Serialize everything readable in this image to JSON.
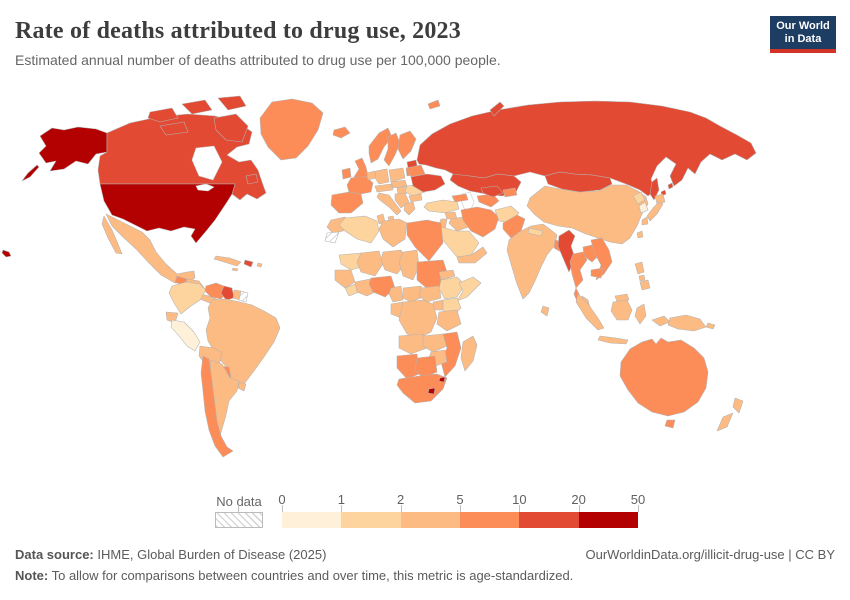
{
  "header": {
    "title": "Rate of deaths attributed to drug use, 2023",
    "subtitle": "Estimated annual number of deaths attributed to drug use per 100,000 people."
  },
  "logo": {
    "line1": "Our World",
    "line2": "in Data",
    "bg_color": "#1d3d63",
    "accent_color": "#d13327"
  },
  "legend": {
    "no_data_label": "No data",
    "tick_labels": [
      "0",
      "1",
      "2",
      "5",
      "10",
      "20",
      "50"
    ]
  },
  "footer": {
    "source_label": "Data source:",
    "source_value": " IHME, Global Burden of Disease (2025)",
    "attribution": "OurWorldinData.org/illicit-drug-use | CC BY",
    "note_label": "Note:",
    "note_value": " To allow for comparisons between countries and over time, this metric is age-standardized."
  },
  "chart_data": {
    "type": "choropleth_map",
    "title": "Rate of deaths attributed to drug use, 2023",
    "unit": "deaths per 100,000 people (age-standardized)",
    "year": "2023",
    "legend_position": "bottom",
    "border_color": "#b3b3b3",
    "water_color": "#ffffff",
    "bins": [
      {
        "label": "0-1",
        "color": "#fef0d9"
      },
      {
        "label": "1-2",
        "color": "#fdd49e"
      },
      {
        "label": "2-5",
        "color": "#fdbb84"
      },
      {
        "label": "5-10",
        "color": "#fc8d59"
      },
      {
        "label": "10-20",
        "color": "#e34a33"
      },
      {
        "label": "20-50",
        "color": "#b30000"
      },
      {
        "label": "No data",
        "color": "hatch"
      }
    ],
    "countries": {
      "united-states": "20-50",
      "canada": "10-20",
      "greenland": "5-10",
      "mexico": "2-5",
      "guatemala": "5-10",
      "honduras-nicaragua": "2-5",
      "costa-rica-panama": "2-5",
      "cuba": "2-5",
      "jamaica": "2-5",
      "haiti-dominican-republic": "10-20",
      "puerto-rico": "2-5",
      "colombia": "1-2",
      "venezuela": "5-10",
      "guyana": "10-20",
      "suriname": "2-5",
      "french-guiana": "No data",
      "ecuador": "2-5",
      "peru": "0-1",
      "brazil": "2-5",
      "bolivia": "2-5",
      "paraguay": "5-10",
      "chile": "5-10",
      "argentina": "2-5",
      "uruguay": "2-5",
      "iceland": "5-10",
      "ireland": "5-10",
      "united-kingdom": "5-10",
      "norway": "5-10",
      "sweden": "5-10",
      "finland": "5-10",
      "denmark": "5-10",
      "estonia": "10-20",
      "latvia-lithuania": "5-10",
      "spain-portugal": "5-10",
      "france": "5-10",
      "belgium-netherlands": "2-5",
      "germany": "2-5",
      "switzerland-austria": "2-5",
      "italy": "2-5",
      "poland": "2-5",
      "czechia-slovakia": "2-5",
      "hungary": "2-5",
      "balkans": "2-5",
      "greece": "2-5",
      "romania": "1-2",
      "bulgaria": "2-5",
      "belarus": "5-10",
      "ukraine": "10-20",
      "russia": "10-20",
      "kazakhstan": "10-20",
      "caucasus": "5-10",
      "turkey": "1-2",
      "syria": "2-5",
      "jordan-israel": "2-5",
      "iraq": "2-5",
      "saudi-arabia": "1-2",
      "yemen-oman": "2-5",
      "iran": "5-10",
      "turkmenistan": "5-10",
      "uzbekistan": "10-20",
      "kyrgyzstan-tajikistan": "5-10",
      "afghanistan": "1-2",
      "pakistan": "5-10",
      "india": "2-5",
      "nepal": "1-2",
      "bangladesh": "5-10",
      "sri-lanka": "2-5",
      "china": "2-5",
      "mongolia": "10-20",
      "north-korea": "1-2",
      "south-korea": "0-1",
      "japan": "2-5",
      "taiwan": "2-5",
      "myanmar": "10-20",
      "thailand": "5-10",
      "laos": "5-10",
      "vietnam": "5-10",
      "cambodia": "5-10",
      "malaysia": "2-5",
      "indonesia": "2-5",
      "philippines": "2-5",
      "papua-new-guinea": "2-5",
      "australia": "5-10",
      "new-zealand": "2-5",
      "morocco": "2-5",
      "western-sahara": "No data",
      "algeria": "1-2",
      "tunisia": "2-5",
      "libya": "2-5",
      "egypt": "5-10",
      "mauritania": "1-2",
      "mali": "2-5",
      "niger": "2-5",
      "chad": "2-5",
      "sudan": "5-10",
      "senegal-guinea": "2-5",
      "sierra-leone-liberia": "1-2",
      "ivory-coast-ghana": "2-5",
      "nigeria": "5-10",
      "cameroon": "2-5",
      "central-african-republic": "2-5",
      "south-sudan": "2-5",
      "eritrea-djibouti": "2-5",
      "ethiopia": "1-2",
      "somalia": "1-2",
      "uganda": "2-5",
      "kenya": "1-2",
      "drc": "2-5",
      "gabon-congo": "2-5",
      "tanzania": "2-5",
      "angola": "2-5",
      "zambia": "2-5",
      "zimbabwe": "2-5",
      "mozambique": "5-10",
      "namibia": "5-10",
      "botswana": "5-10",
      "south-africa": "5-10",
      "lesotho": "20-50",
      "eswatini": "20-50",
      "madagascar": "2-5"
    }
  }
}
